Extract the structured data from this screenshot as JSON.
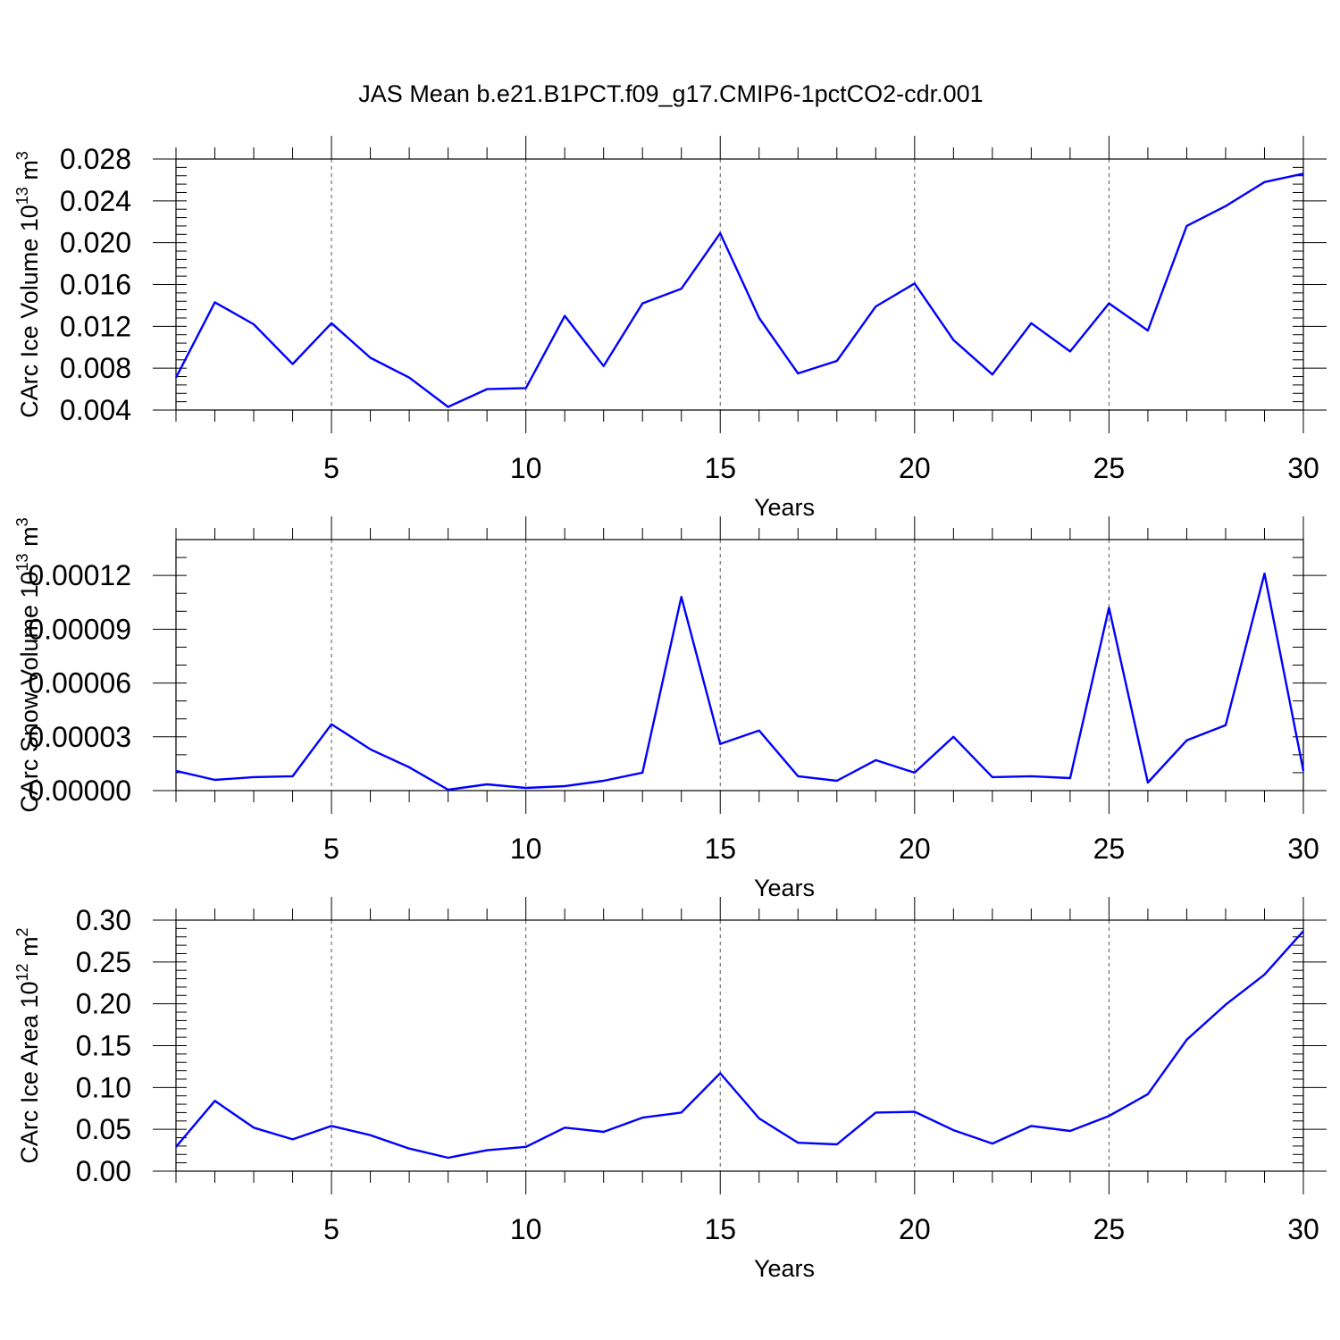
{
  "title": "JAS Mean b.e21.B1PCT.f09_g17.CMIP6-1pctCO2-cdr.001",
  "chart_data": [
    {
      "type": "line",
      "name": "ice-volume",
      "ylabel_main": "CArc Ice Volume 10",
      "ylabel_sup": "13",
      "ylabel_unit": " m",
      "ylabel_unit_sup": "3",
      "xlabel": "Years",
      "xlim": [
        1,
        30
      ],
      "ylim": [
        0.004,
        0.028
      ],
      "x_ticks": [
        5,
        10,
        15,
        20,
        25,
        30
      ],
      "x_tick_labels": [
        "5",
        "10",
        "15",
        "20",
        "25",
        "30"
      ],
      "y_ticks": [
        0.004,
        0.008,
        0.012,
        0.016,
        0.02,
        0.024,
        0.028
      ],
      "y_tick_labels": [
        "0.004",
        "0.008",
        "0.012",
        "0.016",
        "0.020",
        "0.024",
        "0.028"
      ],
      "y_minor_step": 0.0008,
      "color": "#0000ff",
      "x": [
        1,
        2,
        3,
        4,
        5,
        6,
        7,
        8,
        9,
        10,
        11,
        12,
        13,
        14,
        15,
        16,
        17,
        18,
        19,
        20,
        21,
        22,
        23,
        24,
        25,
        26,
        27,
        28,
        29,
        30
      ],
      "values": [
        0.0071,
        0.0143,
        0.0122,
        0.0084,
        0.0123,
        0.009,
        0.0071,
        0.0043,
        0.006,
        0.0061,
        0.013,
        0.0082,
        0.0142,
        0.0156,
        0.0209,
        0.0128,
        0.0075,
        0.0087,
        0.0139,
        0.0161,
        0.0107,
        0.0074,
        0.0123,
        0.0096,
        0.0142,
        0.0116,
        0.0216,
        0.0235,
        0.0258,
        0.0266
      ]
    },
    {
      "type": "line",
      "name": "snow-volume",
      "ylabel_main": "CArc Snow Volume 10",
      "ylabel_sup": "13",
      "ylabel_unit": " m",
      "ylabel_unit_sup": "3",
      "xlabel": "Years",
      "xlim": [
        1,
        30
      ],
      "ylim": [
        0.0,
        0.00014
      ],
      "x_ticks": [
        5,
        10,
        15,
        20,
        25,
        30
      ],
      "x_tick_labels": [
        "5",
        "10",
        "15",
        "20",
        "25",
        "30"
      ],
      "y_ticks": [
        0.0,
        3e-05,
        6e-05,
        9e-05,
        0.00012
      ],
      "y_tick_labels": [
        "0.00000",
        "0.00003",
        "0.00006",
        "0.00009",
        "0.00012"
      ],
      "y_minor_step": 1e-05,
      "color": "#0000ff",
      "x": [
        1,
        2,
        3,
        4,
        5,
        6,
        7,
        8,
        9,
        10,
        11,
        12,
        13,
        14,
        15,
        16,
        17,
        18,
        19,
        20,
        21,
        22,
        23,
        24,
        25,
        26,
        27,
        28,
        29,
        30
      ],
      "values": [
        1.1e-05,
        6e-06,
        7.5e-06,
        8e-06,
        3.7e-05,
        2.3e-05,
        1.3e-05,
        5e-07,
        3.5e-06,
        1.5e-06,
        2.5e-06,
        5.5e-06,
        1e-05,
        0.000108,
        2.6e-05,
        3.35e-05,
        8e-06,
        5.5e-06,
        1.7e-05,
        1e-05,
        3e-05,
        7.5e-06,
        8e-06,
        7e-06,
        0.000102,
        4.5e-06,
        2.8e-05,
        3.65e-05,
        0.000121,
        1.1e-05
      ]
    },
    {
      "type": "line",
      "name": "ice-area",
      "ylabel_main": "CArc Ice Area 10",
      "ylabel_sup": "12",
      "ylabel_unit": " m",
      "ylabel_unit_sup": "2",
      "xlabel": "Years",
      "xlim": [
        1,
        30
      ],
      "ylim": [
        0.0,
        0.3
      ],
      "x_ticks": [
        5,
        10,
        15,
        20,
        25,
        30
      ],
      "x_tick_labels": [
        "5",
        "10",
        "15",
        "20",
        "25",
        "30"
      ],
      "y_ticks": [
        0.0,
        0.05,
        0.1,
        0.15,
        0.2,
        0.25,
        0.3
      ],
      "y_tick_labels": [
        "0.00",
        "0.05",
        "0.10",
        "0.15",
        "0.20",
        "0.25",
        "0.30"
      ],
      "y_minor_step": 0.01,
      "color": "#0000ff",
      "x": [
        1,
        2,
        3,
        4,
        5,
        6,
        7,
        8,
        9,
        10,
        11,
        12,
        13,
        14,
        15,
        16,
        17,
        18,
        19,
        20,
        21,
        22,
        23,
        24,
        25,
        26,
        27,
        28,
        29,
        30
      ],
      "values": [
        0.029,
        0.084,
        0.052,
        0.038,
        0.054,
        0.043,
        0.027,
        0.016,
        0.025,
        0.029,
        0.052,
        0.047,
        0.064,
        0.07,
        0.117,
        0.063,
        0.034,
        0.032,
        0.07,
        0.071,
        0.049,
        0.033,
        0.054,
        0.048,
        0.066,
        0.092,
        0.157,
        0.199,
        0.235,
        0.287
      ]
    }
  ]
}
